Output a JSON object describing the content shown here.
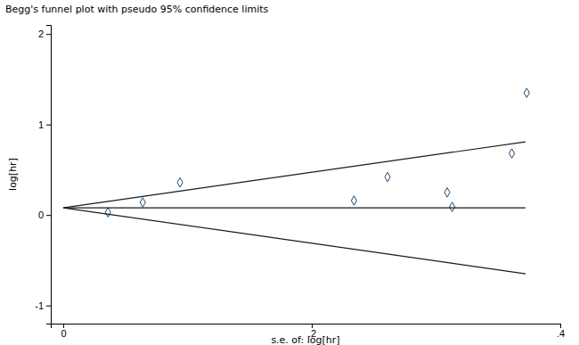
{
  "chart_data": {
    "type": "scatter",
    "title": "Begg's funnel plot with pseudo 95% confidence limits",
    "x_label": "s.e. of: log[hr]",
    "y_label": "log[hr]",
    "xlim": [
      -0.01,
      0.4
    ],
    "ylim": [
      -1.2,
      2.1
    ],
    "xticks": [
      0,
      {
        "value": 0.2,
        "label": ".2"
      },
      {
        "value": 0.4,
        "label": ".4"
      }
    ],
    "yticks": [
      -1,
      0,
      1,
      2
    ],
    "grid": false,
    "series": [
      {
        "type": "scatter",
        "marker": "diamond",
        "color": "#1a476f",
        "x": [
          0.036,
          0.064,
          0.094,
          0.234,
          0.261,
          0.309,
          0.313,
          0.361,
          0.373
        ],
        "values": [
          0.03,
          0.14,
          0.36,
          0.16,
          0.42,
          0.25,
          0.09,
          0.68,
          1.35
        ]
      },
      {
        "type": "line",
        "line_style": "solid",
        "color": "#1a1a1a",
        "x": [
          0,
          0.372
        ],
        "values": [
          0.08,
          0.08
        ]
      },
      {
        "type": "line",
        "line_style": "solid",
        "color": "#1a1a1a",
        "x": [
          0,
          0.372
        ],
        "values": [
          0.08,
          0.809
        ]
      },
      {
        "type": "line",
        "line_style": "solid",
        "color": "#1a1a1a",
        "x": [
          0,
          0.372
        ],
        "values": [
          0.08,
          -0.649
        ]
      }
    ]
  }
}
